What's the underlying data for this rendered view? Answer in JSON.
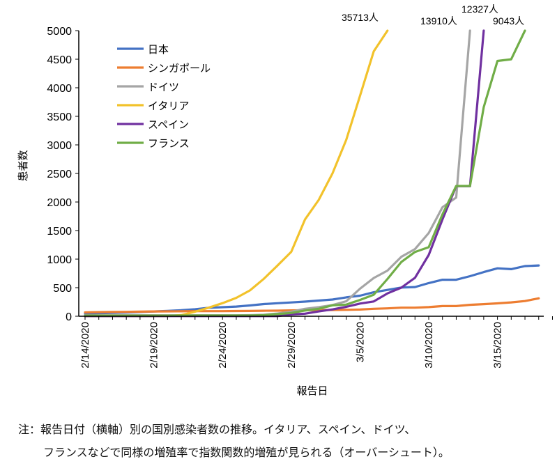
{
  "chart_data": {
    "type": "line",
    "xlabel": "報告日",
    "ylabel": "患者数",
    "ylim": [
      0,
      5000
    ],
    "y_ticks": [
      "0",
      "500",
      "1000",
      "1500",
      "2000",
      "2500",
      "3000",
      "3500",
      "4000",
      "4500",
      "5000"
    ],
    "x_tick_labels": [
      "2/14/2020",
      "2/19/2020",
      "2/24/2020",
      "2/29/2020",
      "3/5/2020",
      "3/10/2020",
      "3/15/2020"
    ],
    "x": [
      "2020-02-14",
      "2020-02-15",
      "2020-02-16",
      "2020-02-17",
      "2020-02-18",
      "2020-02-19",
      "2020-02-20",
      "2020-02-21",
      "2020-02-22",
      "2020-02-23",
      "2020-02-24",
      "2020-02-25",
      "2020-02-26",
      "2020-02-27",
      "2020-02-28",
      "2020-02-29",
      "2020-03-01",
      "2020-03-02",
      "2020-03-03",
      "2020-03-04",
      "2020-03-05",
      "2020-03-06",
      "2020-03-07",
      "2020-03-08",
      "2020-03-09",
      "2020-03-10",
      "2020-03-11",
      "2020-03-12",
      "2020-03-13",
      "2020-03-14",
      "2020-03-15",
      "2020-03-16",
      "2020-03-17",
      "2020-03-18",
      "2020-03-19",
      "2020-03-20",
      "2020-03-21",
      "2020-03-22"
    ],
    "series": [
      {
        "name": "日本",
        "color": "#4472C4",
        "values": [
          41,
          53,
          59,
          66,
          74,
          84,
          94,
          105,
          122,
          147,
          159,
          170,
          189,
          214,
          228,
          241,
          256,
          274,
          293,
          331,
          360,
          420,
          461,
          502,
          511,
          581,
          639,
          639,
          701,
          773,
          839,
          825,
          878,
          889,
          null,
          null,
          null,
          null
        ]
      },
      {
        "name": "シンガポール",
        "color": "#ED7D31",
        "values": [
          67,
          72,
          75,
          77,
          81,
          84,
          85,
          86,
          89,
          89,
          89,
          91,
          93,
          96,
          98,
          102,
          106,
          108,
          110,
          112,
          117,
          130,
          138,
          150,
          150,
          160,
          178,
          178,
          200,
          212,
          226,
          243,
          266,
          313,
          null,
          null,
          null,
          null
        ]
      },
      {
        "name": "ドイツ",
        "color": "#A5A5A5",
        "values": [
          16,
          16,
          16,
          16,
          16,
          16,
          16,
          16,
          16,
          16,
          16,
          16,
          18,
          26,
          48,
          79,
          130,
          159,
          196,
          262,
          482,
          670,
          799,
          1040,
          1176,
          1457,
          1908,
          2078,
          5000,
          null,
          null,
          null,
          null,
          null,
          null,
          null,
          null,
          null
        ]
      },
      {
        "name": "イタリア",
        "color": "#F2C22B",
        "values": [
          3,
          3,
          3,
          3,
          3,
          3,
          3,
          20,
          79,
          150,
          229,
          322,
          453,
          655,
          888,
          1128,
          1694,
          2036,
          2502,
          3089,
          3858,
          4636,
          5000,
          null,
          null,
          null,
          null,
          null,
          null,
          null,
          null,
          null,
          null,
          null,
          null,
          null,
          null,
          null
        ]
      },
      {
        "name": "スペイン",
        "color": "#7030A0",
        "values": [
          2,
          2,
          2,
          2,
          2,
          2,
          2,
          2,
          2,
          2,
          2,
          2,
          2,
          2,
          2,
          32,
          45,
          84,
          120,
          165,
          222,
          259,
          400,
          500,
          673,
          1073,
          1695,
          2277,
          2277,
          5000,
          null,
          null,
          null,
          null,
          null,
          null,
          null,
          null
        ]
      },
      {
        "name": "フランス",
        "color": "#70AD47",
        "values": [
          11,
          11,
          11,
          11,
          11,
          11,
          11,
          12,
          12,
          12,
          12,
          12,
          12,
          18,
          38,
          57,
          100,
          130,
          191,
          204,
          285,
          377,
          653,
          949,
          1126,
          1209,
          1784,
          2281,
          2281,
          3661,
          4469,
          4499,
          5000,
          null,
          null,
          null,
          null,
          null
        ]
      }
    ],
    "legend_position": "top-left",
    "grid": false,
    "overflow_annotations": [
      "35713人",
      "12327人",
      "13910人",
      "9043人"
    ]
  },
  "note_line1": "注：報告日付（横軸）別の国別感染者数の推移。イタリア、スペイン、ドイツ、",
  "note_line2": "フランスなどで同様の増殖率で指数関数的増殖が見られる（オーバーシュート）。"
}
